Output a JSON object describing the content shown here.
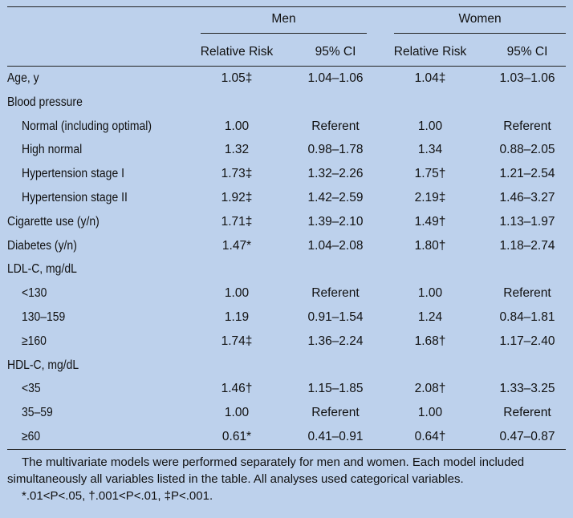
{
  "header": {
    "group_men": "Men",
    "group_women": "Women",
    "col_rr": "Relative Risk",
    "col_ci": "95% CI"
  },
  "rows": [
    {
      "label": "Age, y",
      "indent": false,
      "m_rr": "1.05‡",
      "m_ci": "1.04–1.06",
      "w_rr": "1.04‡",
      "w_ci": "1.03–1.06"
    },
    {
      "label": "Blood pressure",
      "indent": false,
      "m_rr": "",
      "m_ci": "",
      "w_rr": "",
      "w_ci": ""
    },
    {
      "label": "Normal (including optimal)",
      "indent": true,
      "m_rr": "1.00",
      "m_ci": "Referent",
      "w_rr": "1.00",
      "w_ci": "Referent"
    },
    {
      "label": "High normal",
      "indent": true,
      "m_rr": "1.32",
      "m_ci": "0.98–1.78",
      "w_rr": "1.34",
      "w_ci": "0.88–2.05"
    },
    {
      "label": "Hypertension stage I",
      "indent": true,
      "m_rr": "1.73‡",
      "m_ci": "1.32–2.26",
      "w_rr": "1.75†",
      "w_ci": "1.21–2.54"
    },
    {
      "label": "Hypertension stage II",
      "indent": true,
      "m_rr": "1.92‡",
      "m_ci": "1.42–2.59",
      "w_rr": "2.19‡",
      "w_ci": "1.46–3.27"
    },
    {
      "label": "Cigarette use (y/n)",
      "indent": false,
      "m_rr": "1.71‡",
      "m_ci": "1.39–2.10",
      "w_rr": "1.49†",
      "w_ci": "1.13–1.97"
    },
    {
      "label": "Diabetes (y/n)",
      "indent": false,
      "m_rr": "1.47*",
      "m_ci": "1.04–2.08",
      "w_rr": "1.80†",
      "w_ci": "1.18–2.74"
    },
    {
      "label": "LDL-C, mg/dL",
      "indent": false,
      "m_rr": "",
      "m_ci": "",
      "w_rr": "",
      "w_ci": ""
    },
    {
      "label": "<130",
      "indent": true,
      "m_rr": "1.00",
      "m_ci": "Referent",
      "w_rr": "1.00",
      "w_ci": "Referent"
    },
    {
      "label": "130–159",
      "indent": true,
      "m_rr": "1.19",
      "m_ci": "0.91–1.54",
      "w_rr": "1.24",
      "w_ci": "0.84–1.81"
    },
    {
      "label": "≥160",
      "indent": true,
      "m_rr": "1.74‡",
      "m_ci": "1.36–2.24",
      "w_rr": "1.68†",
      "w_ci": "1.17–2.40"
    },
    {
      "label": "HDL-C, mg/dL",
      "indent": false,
      "m_rr": "",
      "m_ci": "",
      "w_rr": "",
      "w_ci": ""
    },
    {
      "label": "<35",
      "indent": true,
      "m_rr": "1.46†",
      "m_ci": "1.15–1.85",
      "w_rr": "2.08†",
      "w_ci": "1.33–3.25"
    },
    {
      "label": "35–59",
      "indent": true,
      "m_rr": "1.00",
      "m_ci": "Referent",
      "w_rr": "1.00",
      "w_ci": "Referent"
    },
    {
      "label": "≥60",
      "indent": true,
      "m_rr": "0.61*",
      "m_ci": "0.41–0.91",
      "w_rr": "0.64†",
      "w_ci": "0.47–0.87"
    }
  ],
  "footnote": {
    "text": "The multivariate models were performed separately for men and women. Each model included simultaneously all variables listed in the table. All analyses used categorical variables.",
    "sig": "*.01<P<.05, †.001<P<.01, ‡P<.001."
  }
}
